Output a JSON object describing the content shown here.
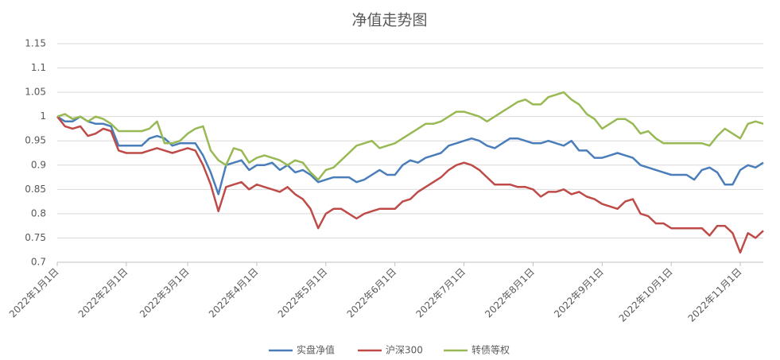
{
  "chart_data": {
    "type": "line",
    "title": "净值走势图",
    "categories": [
      "2022年1月1日",
      null,
      null,
      null,
      null,
      null,
      null,
      null,
      null,
      "2022年2月1日",
      null,
      null,
      null,
      null,
      null,
      null,
      null,
      "2022年3月1日",
      null,
      null,
      null,
      null,
      null,
      null,
      null,
      null,
      "2022年4月1日",
      null,
      null,
      null,
      null,
      null,
      null,
      null,
      null,
      "2022年5月1日",
      null,
      null,
      null,
      null,
      null,
      null,
      null,
      null,
      "2022年6月1日",
      null,
      null,
      null,
      null,
      null,
      null,
      null,
      null,
      "2022年7月1日",
      null,
      null,
      null,
      null,
      null,
      null,
      null,
      null,
      "2022年8月1日",
      null,
      null,
      null,
      null,
      null,
      null,
      null,
      null,
      "2022年9月1日",
      null,
      null,
      null,
      null,
      null,
      null,
      null,
      null,
      "2022年10月1日",
      null,
      null,
      null,
      null,
      null,
      null,
      null,
      null,
      "2022年11月1日",
      null,
      null,
      null
    ],
    "series": [
      {
        "name": "实盘净值",
        "color": "#4a7ebb",
        "values": [
          1.0,
          0.99,
          0.99,
          1.0,
          0.99,
          0.985,
          0.985,
          0.98,
          0.94,
          0.94,
          0.94,
          0.94,
          0.955,
          0.96,
          0.955,
          0.94,
          0.945,
          0.945,
          0.945,
          0.92,
          0.885,
          0.84,
          0.9,
          0.905,
          0.91,
          0.89,
          0.9,
          0.9,
          0.905,
          0.89,
          0.9,
          0.885,
          0.89,
          0.88,
          0.865,
          0.87,
          0.875,
          0.875,
          0.875,
          0.865,
          0.87,
          0.88,
          0.89,
          0.88,
          0.88,
          0.9,
          0.91,
          0.905,
          0.915,
          0.92,
          0.925,
          0.94,
          0.945,
          0.95,
          0.955,
          0.95,
          0.94,
          0.935,
          0.945,
          0.955,
          0.955,
          0.95,
          0.945,
          0.945,
          0.95,
          0.945,
          0.94,
          0.95,
          0.93,
          0.93,
          0.915,
          0.915,
          0.92,
          0.925,
          0.92,
          0.915,
          0.9,
          0.895,
          0.89,
          0.885,
          0.88,
          0.88,
          0.88,
          0.87,
          0.89,
          0.895,
          0.885,
          0.86,
          0.86,
          0.89,
          0.9,
          0.895,
          0.905
        ]
      },
      {
        "name": "沪深300",
        "color": "#be4b48",
        "values": [
          1.0,
          0.98,
          0.975,
          0.98,
          0.96,
          0.965,
          0.975,
          0.97,
          0.93,
          0.925,
          0.925,
          0.925,
          0.93,
          0.935,
          0.93,
          0.925,
          0.93,
          0.935,
          0.93,
          0.9,
          0.86,
          0.805,
          0.855,
          0.86,
          0.865,
          0.85,
          0.86,
          0.855,
          0.85,
          0.845,
          0.855,
          0.84,
          0.83,
          0.81,
          0.77,
          0.8,
          0.81,
          0.81,
          0.8,
          0.79,
          0.8,
          0.805,
          0.81,
          0.81,
          0.81,
          0.825,
          0.83,
          0.845,
          0.855,
          0.865,
          0.875,
          0.89,
          0.9,
          0.905,
          0.9,
          0.89,
          0.875,
          0.86,
          0.86,
          0.86,
          0.855,
          0.855,
          0.85,
          0.835,
          0.845,
          0.845,
          0.85,
          0.84,
          0.845,
          0.835,
          0.83,
          0.82,
          0.815,
          0.81,
          0.825,
          0.83,
          0.8,
          0.795,
          0.78,
          0.78,
          0.77,
          0.77,
          0.77,
          0.77,
          0.77,
          0.755,
          0.775,
          0.775,
          0.76,
          0.72,
          0.76,
          0.75,
          0.765
        ]
      },
      {
        "name": "转债等权",
        "color": "#98b954",
        "values": [
          1.0,
          1.005,
          0.995,
          1.0,
          0.99,
          1.0,
          0.995,
          0.985,
          0.97,
          0.97,
          0.97,
          0.97,
          0.975,
          0.99,
          0.945,
          0.945,
          0.95,
          0.965,
          0.975,
          0.98,
          0.93,
          0.91,
          0.9,
          0.935,
          0.93,
          0.905,
          0.915,
          0.92,
          0.915,
          0.91,
          0.9,
          0.91,
          0.905,
          0.885,
          0.87,
          0.89,
          0.895,
          0.91,
          0.925,
          0.94,
          0.945,
          0.95,
          0.935,
          0.94,
          0.945,
          0.955,
          0.965,
          0.975,
          0.985,
          0.985,
          0.99,
          1.0,
          1.01,
          1.01,
          1.005,
          1.0,
          0.99,
          1.0,
          1.01,
          1.02,
          1.03,
          1.035,
          1.025,
          1.025,
          1.04,
          1.045,
          1.05,
          1.035,
          1.025,
          1.005,
          0.995,
          0.975,
          0.985,
          0.995,
          0.995,
          0.985,
          0.965,
          0.97,
          0.955,
          0.945,
          0.945,
          0.945,
          0.945,
          0.945,
          0.945,
          0.94,
          0.96,
          0.975,
          0.965,
          0.955,
          0.985,
          0.99,
          0.985
        ]
      }
    ],
    "ylim": [
      0.7,
      1.15
    ],
    "yticks": [
      0.7,
      0.75,
      0.8,
      0.85,
      0.9,
      0.95,
      1,
      1.05,
      1.1,
      1.15
    ],
    "grid": true,
    "legend": "bottom"
  }
}
